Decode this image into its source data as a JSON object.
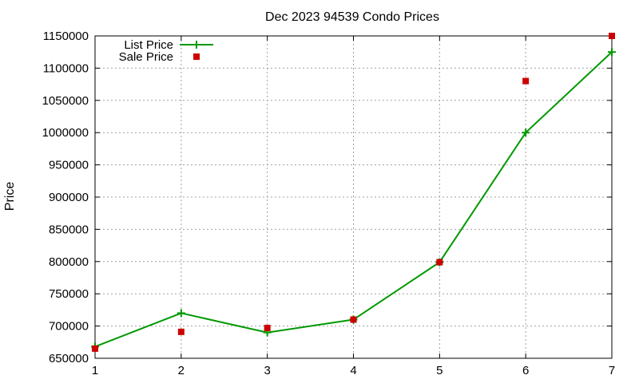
{
  "chart_data": {
    "type": "line",
    "title": "Dec 2023 94539 Condo Prices",
    "xlabel": "",
    "ylabel": "Price",
    "x": [
      1,
      2,
      3,
      4,
      5,
      6,
      7
    ],
    "xlim": [
      1,
      7
    ],
    "ylim": [
      650000,
      1150000
    ],
    "x_ticks": [
      "1",
      "2",
      "3",
      "4",
      "5",
      "6",
      "7"
    ],
    "y_ticks": [
      "650000",
      "700000",
      "750000",
      "800000",
      "850000",
      "900000",
      "950000",
      "1000000",
      "1050000",
      "1100000",
      "1150000"
    ],
    "grid": true,
    "legend_position": "top-left",
    "series": [
      {
        "name": "List Price",
        "style": "line-with-plus-markers",
        "color": "#009900",
        "values": [
          668000,
          720000,
          690000,
          710000,
          799000,
          1000000,
          1125000
        ]
      },
      {
        "name": "Sale Price",
        "style": "square-markers",
        "color": "#cc0000",
        "values": [
          665000,
          691000,
          697000,
          710000,
          799000,
          1080000,
          1150000
        ]
      }
    ]
  }
}
